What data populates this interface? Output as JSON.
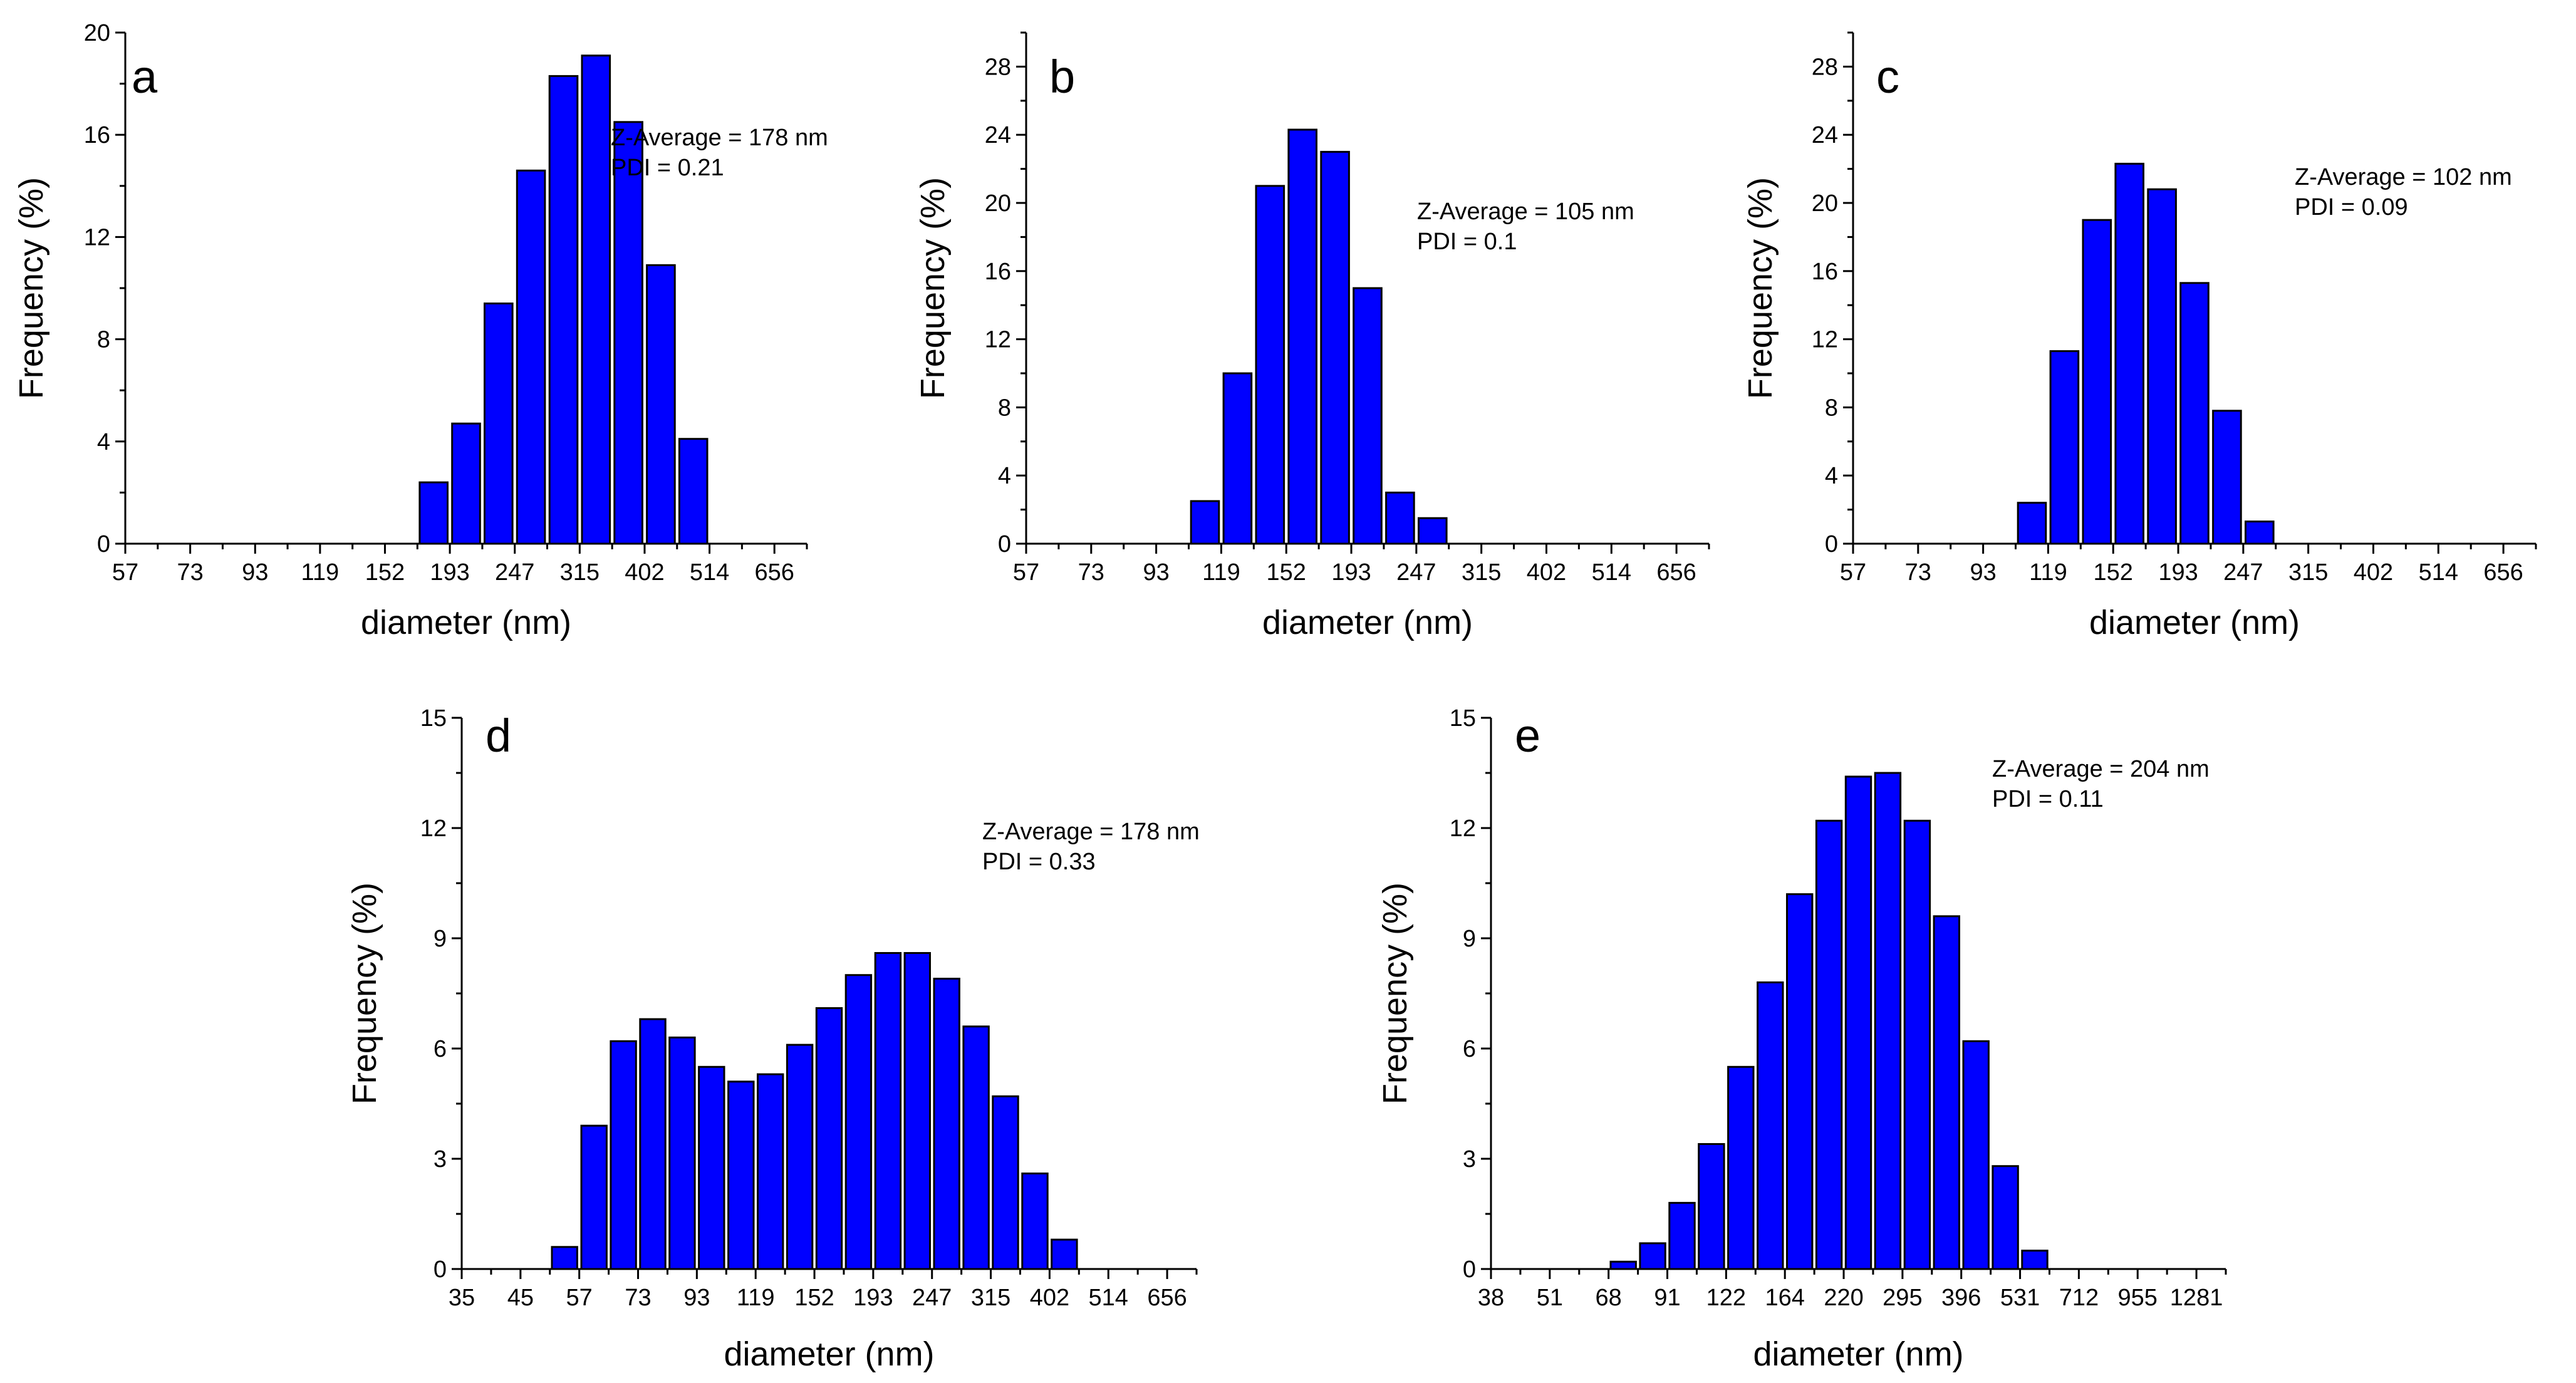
{
  "chart_data": [
    {
      "id": "a",
      "type": "bar",
      "panel_label": "a",
      "xlabel": "diameter (nm)",
      "ylabel": "Frequency (%)",
      "ylim": [
        0,
        20
      ],
      "yticks": [
        "0",
        "4",
        "8",
        "12",
        "16",
        "20"
      ],
      "xtick_labels": [
        "57",
        "73",
        "93",
        "119",
        "152",
        "193",
        "247",
        "315",
        "402",
        "514",
        "656"
      ],
      "bin_count": 21,
      "bars": [
        {
          "bin": 9,
          "value": 2.4
        },
        {
          "bin": 10,
          "value": 4.7
        },
        {
          "bin": 11,
          "value": 9.4
        },
        {
          "bin": 12,
          "value": 14.6
        },
        {
          "bin": 13,
          "value": 18.3
        },
        {
          "bin": 14,
          "value": 19.1
        },
        {
          "bin": 15,
          "value": 16.5
        },
        {
          "bin": 16,
          "value": 10.9
        },
        {
          "bin": 17,
          "value": 4.1
        }
      ],
      "annotation": [
        "Z-Average = 178 nm",
        "PDI = 0.21"
      ]
    },
    {
      "id": "b",
      "type": "bar",
      "panel_label": "b",
      "xlabel": "diameter (nm)",
      "ylabel": "Frequency (%)",
      "ylim": [
        0,
        30
      ],
      "yticks": [
        "0",
        "4",
        "8",
        "12",
        "16",
        "20",
        "24",
        "28"
      ],
      "xtick_labels": [
        "57",
        "73",
        "93",
        "119",
        "152",
        "193",
        "247",
        "315",
        "402",
        "514",
        "656"
      ],
      "bin_count": 21,
      "bars": [
        {
          "bin": 5,
          "value": 2.5
        },
        {
          "bin": 6,
          "value": 10.0
        },
        {
          "bin": 7,
          "value": 21.0
        },
        {
          "bin": 8,
          "value": 24.3
        },
        {
          "bin": 9,
          "value": 23.0
        },
        {
          "bin": 10,
          "value": 15.0
        },
        {
          "bin": 11,
          "value": 3.0
        },
        {
          "bin": 12,
          "value": 1.5
        }
      ],
      "annotation": [
        "Z-Average = 105 nm",
        "PDI = 0.1"
      ]
    },
    {
      "id": "c",
      "type": "bar",
      "panel_label": "c",
      "xlabel": "diameter (nm)",
      "ylabel": "Frequency (%)",
      "ylim": [
        0,
        30
      ],
      "yticks": [
        "0",
        "4",
        "8",
        "12",
        "16",
        "20",
        "24",
        "28"
      ],
      "xtick_labels": [
        "57",
        "73",
        "93",
        "119",
        "152",
        "193",
        "247",
        "315",
        "402",
        "514",
        "656"
      ],
      "bin_count": 21,
      "bars": [
        {
          "bin": 5,
          "value": 2.4
        },
        {
          "bin": 6,
          "value": 11.3
        },
        {
          "bin": 7,
          "value": 19.0
        },
        {
          "bin": 8,
          "value": 22.3
        },
        {
          "bin": 9,
          "value": 20.8
        },
        {
          "bin": 10,
          "value": 15.3
        },
        {
          "bin": 11,
          "value": 7.8
        },
        {
          "bin": 12,
          "value": 1.3
        }
      ],
      "annotation": [
        "Z-Average = 102 nm",
        "PDI = 0.09"
      ]
    },
    {
      "id": "d",
      "type": "bar",
      "panel_label": "d",
      "xlabel": "diameter (nm)",
      "ylabel": "Frequency (%)",
      "ylim": [
        0,
        15
      ],
      "yticks": [
        "0",
        "3",
        "6",
        "9",
        "12",
        "15"
      ],
      "xtick_labels": [
        "35",
        "45",
        "57",
        "73",
        "93",
        "119",
        "152",
        "193",
        "247",
        "315",
        "402",
        "514",
        "656"
      ],
      "bin_count": 25,
      "bars": [
        {
          "bin": 3,
          "value": 0.6
        },
        {
          "bin": 4,
          "value": 3.9
        },
        {
          "bin": 5,
          "value": 6.2
        },
        {
          "bin": 6,
          "value": 6.8
        },
        {
          "bin": 7,
          "value": 6.3
        },
        {
          "bin": 8,
          "value": 5.5
        },
        {
          "bin": 9,
          "value": 5.1
        },
        {
          "bin": 10,
          "value": 5.3
        },
        {
          "bin": 11,
          "value": 6.1
        },
        {
          "bin": 12,
          "value": 7.1
        },
        {
          "bin": 13,
          "value": 8.0
        },
        {
          "bin": 14,
          "value": 8.6
        },
        {
          "bin": 15,
          "value": 8.6
        },
        {
          "bin": 16,
          "value": 7.9
        },
        {
          "bin": 17,
          "value": 6.6
        },
        {
          "bin": 18,
          "value": 4.7
        },
        {
          "bin": 19,
          "value": 2.6
        },
        {
          "bin": 20,
          "value": 0.8
        }
      ],
      "annotation": [
        "Z-Average = 178 nm",
        "PDI = 0.33"
      ]
    },
    {
      "id": "e",
      "type": "bar",
      "panel_label": "e",
      "xlabel": "diameter (nm)",
      "ylabel": "Frequency (%)",
      "ylim": [
        0,
        15
      ],
      "yticks": [
        "0",
        "3",
        "6",
        "9",
        "12",
        "15"
      ],
      "xtick_labels": [
        "38",
        "51",
        "68",
        "91",
        "122",
        "164",
        "220",
        "295",
        "396",
        "531",
        "712",
        "955",
        "1281"
      ],
      "bin_count": 25,
      "bars": [
        {
          "bin": 4,
          "value": 0.2
        },
        {
          "bin": 5,
          "value": 0.7
        },
        {
          "bin": 6,
          "value": 1.8
        },
        {
          "bin": 7,
          "value": 3.4
        },
        {
          "bin": 8,
          "value": 5.5
        },
        {
          "bin": 9,
          "value": 7.8
        },
        {
          "bin": 10,
          "value": 10.2
        },
        {
          "bin": 11,
          "value": 12.2
        },
        {
          "bin": 12,
          "value": 13.4
        },
        {
          "bin": 13,
          "value": 13.5
        },
        {
          "bin": 14,
          "value": 12.2
        },
        {
          "bin": 15,
          "value": 9.6
        },
        {
          "bin": 16,
          "value": 6.2
        },
        {
          "bin": 17,
          "value": 2.8
        },
        {
          "bin": 18,
          "value": 0.5
        }
      ],
      "annotation": [
        "Z-Average = 204 nm",
        "PDI = 0.11"
      ]
    }
  ],
  "colors": {
    "bar_fill": "#0000ff",
    "bar_edge": "#000000",
    "axis": "#000000"
  }
}
